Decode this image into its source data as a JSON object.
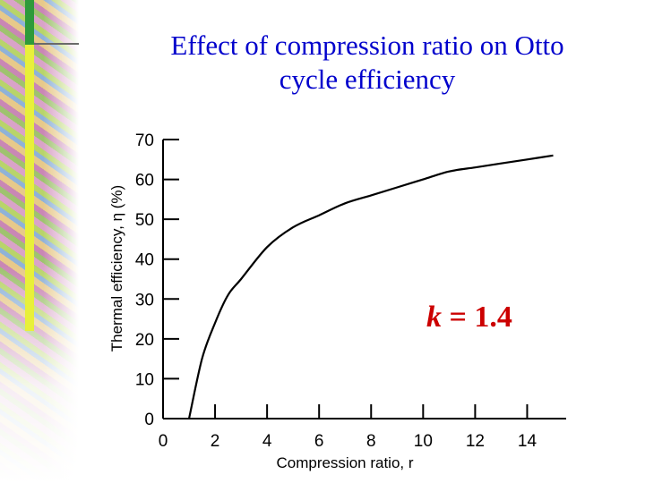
{
  "slide": {
    "title_line1": "Effect of compression ratio on Otto",
    "title_line2": "cycle efficiency"
  },
  "colors": {
    "title": "#0000cc",
    "annotation": "#cc0000",
    "axis": "#000000"
  },
  "chart_data": {
    "type": "line",
    "title": "Effect of compression ratio on Otto cycle efficiency",
    "xlabel": "Compression ratio, r",
    "ylabel": "Thermal efficiency, η (%)",
    "xlim": [
      0,
      15.5
    ],
    "ylim": [
      0,
      70
    ],
    "x_ticks": [
      0,
      2,
      4,
      6,
      8,
      10,
      12,
      14
    ],
    "y_ticks": [
      0,
      10,
      20,
      30,
      40,
      50,
      60,
      70
    ],
    "annotation": {
      "text_k": "k",
      "text_rest": " = 1.4"
    },
    "series": [
      {
        "name": "η",
        "x": [
          1,
          1.5,
          2,
          2.5,
          3,
          4,
          5,
          6,
          7,
          8,
          9,
          10,
          11,
          12,
          13,
          14,
          15
        ],
        "values": [
          0,
          15,
          24,
          31,
          35,
          43,
          48,
          51,
          54,
          56,
          58,
          60,
          62,
          63,
          64,
          65,
          66
        ]
      }
    ]
  }
}
